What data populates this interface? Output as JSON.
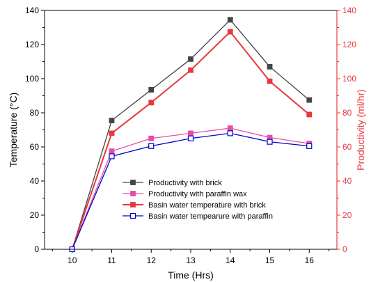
{
  "chart_data": {
    "type": "line",
    "xlabel": "Time (Hrs)",
    "ylabel_left": "Temperature (°C)",
    "ylabel_right": "Productivity (ml/hr)",
    "x": [
      10,
      11,
      12,
      13,
      14,
      15,
      16
    ],
    "x_ticks": [
      "10",
      "11",
      "12",
      "13",
      "14",
      "15",
      "16"
    ],
    "xlim": [
      9.3,
      16.7
    ],
    "ylim_left": [
      0,
      140
    ],
    "ylim_right": [
      0,
      140
    ],
    "y_ticks_left": [
      "0",
      "20",
      "40",
      "60",
      "80",
      "100",
      "120",
      "140"
    ],
    "y_ticks_right": [
      "0",
      "20",
      "40",
      "60",
      "80",
      "100",
      "120",
      "140"
    ],
    "right_axis_color": "#e8383d",
    "grid": false,
    "legend_position": "lower-center",
    "series": [
      {
        "name": "Productivity with brick",
        "color": "#444444",
        "marker": "filled-square",
        "values": [
          0,
          75.5,
          93.5,
          111.5,
          134.5,
          107,
          87.5
        ]
      },
      {
        "name": "Productivity with paraffin wax",
        "color": "#e64ca8",
        "marker": "filled-square",
        "values": [
          0,
          57.5,
          65,
          68,
          71,
          65.5,
          62
        ]
      },
      {
        "name": "Basin water temperature with brick",
        "color": "#e8383d",
        "marker": "filled-square",
        "values": [
          0,
          68,
          86,
          105,
          127.5,
          98.5,
          79
        ]
      },
      {
        "name": "Basin water tempearure with paraffin",
        "color": "#0000cc",
        "marker": "open-square",
        "values": [
          0,
          54.5,
          60.5,
          65,
          68,
          63,
          60.5
        ]
      }
    ]
  }
}
